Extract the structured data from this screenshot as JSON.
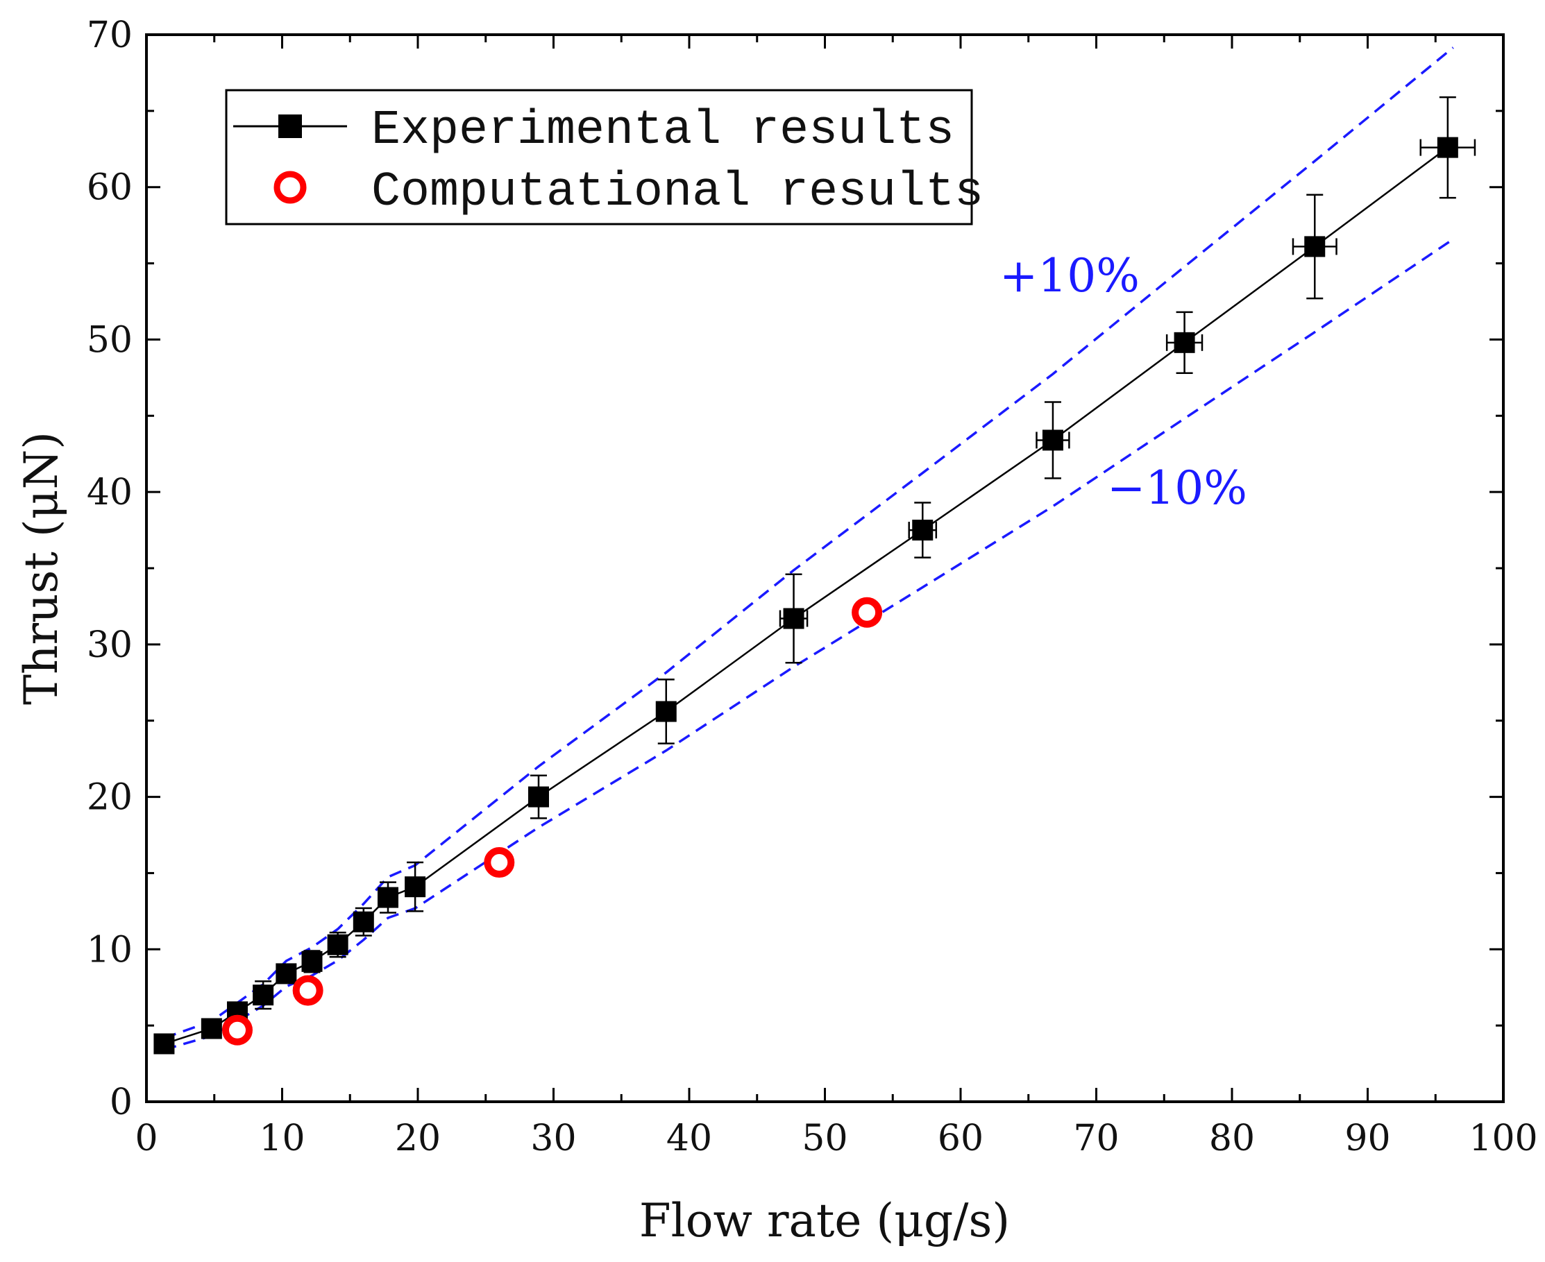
{
  "chart_data": {
    "type": "scatter",
    "title": "",
    "xlabel": "Flow rate (μg/s)",
    "ylabel": "Thrust (μN)",
    "xlim": [
      0,
      100
    ],
    "ylim": [
      0,
      70
    ],
    "xticks": [
      "0",
      "10",
      "20",
      "30",
      "40",
      "50",
      "60",
      "70",
      "80",
      "90",
      "100"
    ],
    "yticks": [
      "0",
      "10",
      "20",
      "30",
      "40",
      "50",
      "60",
      "70"
    ],
    "grid": false,
    "legend_position": "top-left",
    "series": [
      {
        "name": "Experimental results",
        "marker": "filled-square",
        "line": "solid",
        "color": "#000000",
        "points": [
          {
            "x": 1.3,
            "y": 3.8,
            "yerr": 0.4,
            "xerr": 0
          },
          {
            "x": 4.8,
            "y": 4.8,
            "yerr": 0.5,
            "xerr": 0
          },
          {
            "x": 6.7,
            "y": 5.9,
            "yerr": 0.6,
            "xerr": 0
          },
          {
            "x": 8.6,
            "y": 7.0,
            "yerr": 0.9,
            "xerr": 0
          },
          {
            "x": 10.3,
            "y": 8.4,
            "yerr": 0.5,
            "xerr": 0
          },
          {
            "x": 12.2,
            "y": 9.2,
            "yerr": 0.7,
            "xerr": 0
          },
          {
            "x": 14.1,
            "y": 10.3,
            "yerr": 0.8,
            "xerr": 0
          },
          {
            "x": 16.0,
            "y": 11.8,
            "yerr": 0.9,
            "xerr": 0
          },
          {
            "x": 17.8,
            "y": 13.4,
            "yerr": 1.0,
            "xerr": 0
          },
          {
            "x": 19.8,
            "y": 14.1,
            "yerr": 1.6,
            "xerr": 0
          },
          {
            "x": 28.9,
            "y": 20.0,
            "yerr": 1.4,
            "xerr": 0
          },
          {
            "x": 38.3,
            "y": 25.6,
            "yerr": 2.1,
            "xerr": 0
          },
          {
            "x": 47.7,
            "y": 31.7,
            "yerr": 2.9,
            "xerr": 1.0
          },
          {
            "x": 57.2,
            "y": 37.5,
            "yerr": 1.8,
            "xerr": 1.0
          },
          {
            "x": 66.8,
            "y": 43.4,
            "yerr": 2.5,
            "xerr": 1.2
          },
          {
            "x": 76.5,
            "y": 49.8,
            "yerr": 2.0,
            "xerr": 1.3
          },
          {
            "x": 86.1,
            "y": 56.1,
            "yerr": 3.4,
            "xerr": 1.6
          },
          {
            "x": 95.9,
            "y": 62.6,
            "yerr": 3.3,
            "xerr": 2.0
          }
        ]
      },
      {
        "name": "Computational results",
        "marker": "open-circle",
        "line": "none",
        "color": "#ff0000",
        "points": [
          {
            "x": 6.7,
            "y": 4.7
          },
          {
            "x": 11.9,
            "y": 7.3
          },
          {
            "x": 26.0,
            "y": 15.7
          },
          {
            "x": 53.1,
            "y": 32.1
          }
        ]
      }
    ],
    "bands": [
      {
        "label": "+10%",
        "factor": 1.1,
        "color": "#1a1aff",
        "style": "dashed"
      },
      {
        "label": "−10%",
        "factor": 0.9,
        "color": "#1a1aff",
        "style": "dashed"
      }
    ]
  }
}
